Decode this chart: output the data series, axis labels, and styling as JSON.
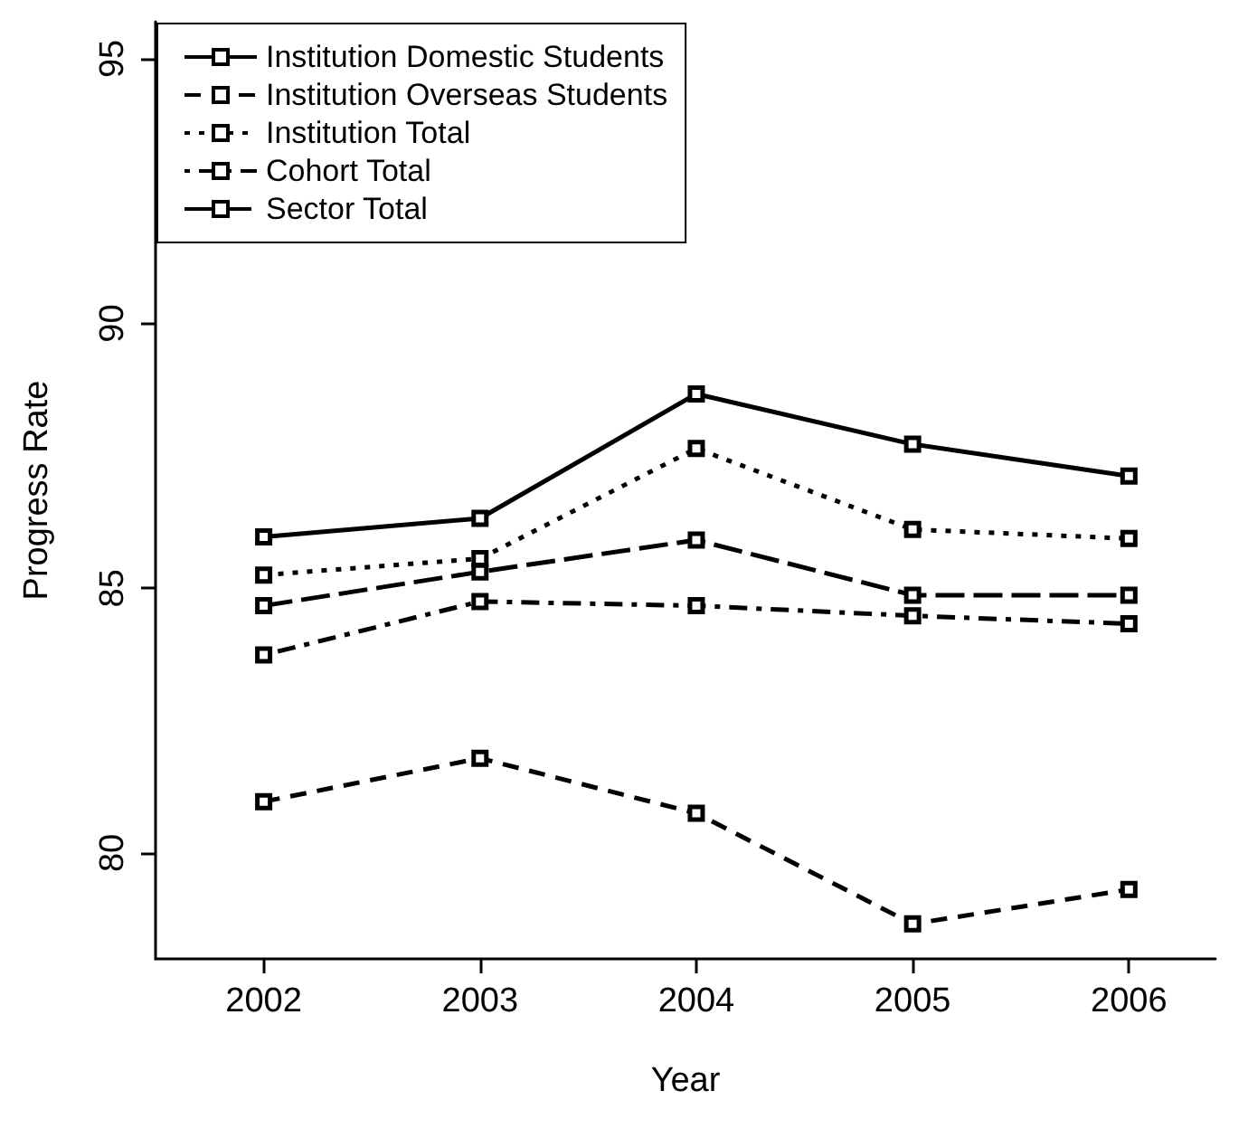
{
  "chart_data": {
    "type": "line",
    "xlabel": "Year",
    "ylabel": "Progress Rate",
    "x": [
      2002,
      2003,
      2004,
      2005,
      2006
    ],
    "xlim": [
      2001.5,
      2006.4
    ],
    "xticks": [
      2002,
      2003,
      2004,
      2005,
      2006
    ],
    "ylim": [
      78,
      95.7
    ],
    "yticks": [
      80,
      85,
      90,
      95
    ],
    "grid": false,
    "legend": "top left",
    "marker": "square",
    "series": [
      {
        "name": "Institution Domestic Students",
        "color": "#000000",
        "line_style": "solid",
        "values": [
          85.97,
          86.32,
          88.67,
          87.72,
          87.12
        ]
      },
      {
        "name": "Institution Overseas Students",
        "color": "#000000",
        "line_style": "dashed",
        "values": [
          80.97,
          81.79,
          80.75,
          78.66,
          79.31
        ]
      },
      {
        "name": "Institution Total",
        "color": "#000000",
        "line_style": "dotted",
        "values": [
          85.25,
          85.56,
          87.64,
          86.11,
          85.94
        ]
      },
      {
        "name": "Cohort Total",
        "color": "#000000",
        "line_style": "dashdot",
        "values": [
          83.74,
          84.75,
          84.67,
          84.48,
          84.33
        ]
      },
      {
        "name": "Sector Total",
        "color": "#000000",
        "line_style": "longdash",
        "values": [
          84.67,
          85.31,
          85.91,
          84.87,
          84.87
        ]
      }
    ]
  }
}
